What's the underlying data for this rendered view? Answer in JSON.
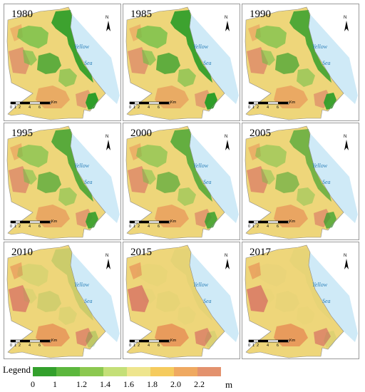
{
  "panels": [
    {
      "year": "1980",
      "green": 0.62
    },
    {
      "year": "1985",
      "green": 0.62
    },
    {
      "year": "1990",
      "green": 0.55
    },
    {
      "year": "1995",
      "green": 0.52
    },
    {
      "year": "2000",
      "green": 0.48
    },
    {
      "year": "2005",
      "green": 0.42
    },
    {
      "year": "2010",
      "green": 0.12
    },
    {
      "year": "2015",
      "green": 0.03
    },
    {
      "year": "2017",
      "green": 0.02
    }
  ],
  "sea_label_1": "Yellow",
  "sea_label_2": "Sea",
  "north_label": "N",
  "scale_ticks": [
    "0",
    "1",
    "2",
    "4",
    "6"
  ],
  "scale_unit": "Km",
  "legend": {
    "title": "Legend",
    "labels": [
      "0",
      "1",
      "1.2",
      "1.4",
      "1.6",
      "1.8",
      "2.0",
      "2.2"
    ],
    "unit": "m",
    "colors": [
      "#33a02c",
      "#5cb73d",
      "#8cc850",
      "#c4df78",
      "#eee58e",
      "#f5cb5e",
      "#efa961",
      "#e3926e"
    ]
  },
  "colors": {
    "sea": "#cfeaf7",
    "land_base": "#eed67a",
    "green_dark": "#2f9e29",
    "green_mid": "#6abf45",
    "orange": "#e89a5c",
    "red_orange": "#dc8468"
  }
}
